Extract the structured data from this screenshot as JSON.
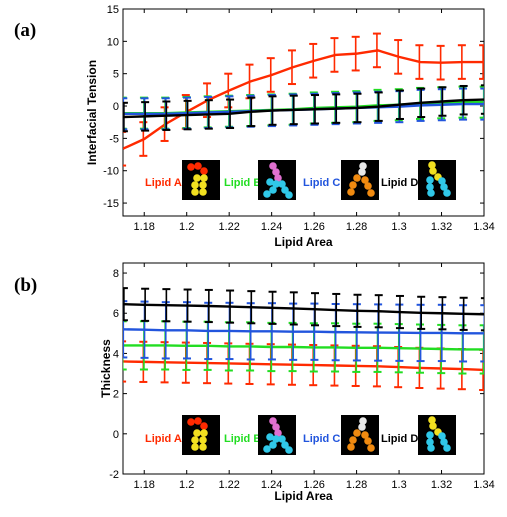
{
  "chart_data": [
    {
      "panel": "(a)",
      "type": "line",
      "xlabel": "Lipid Area",
      "ylabel": "Interfacial Tension",
      "xlim": [
        1.17,
        1.34
      ],
      "ylim": [
        -17,
        15
      ],
      "xticks": [
        1.18,
        1.2,
        1.22,
        1.24,
        1.26,
        1.28,
        1.3,
        1.32,
        1.34
      ],
      "xtick_labels": [
        "1.18",
        "1.2",
        "1.22",
        "1.24",
        "1.26",
        "1.28",
        "1.3",
        "1.32",
        "1.34"
      ],
      "yticks": [
        -15,
        -10,
        -5,
        0,
        5,
        10,
        15
      ],
      "ytick_labels": [
        "-15",
        "-10",
        "-5",
        "0",
        "5",
        "10",
        "15"
      ],
      "x": [
        1.17,
        1.18,
        1.19,
        1.2,
        1.21,
        1.22,
        1.23,
        1.24,
        1.25,
        1.26,
        1.27,
        1.28,
        1.29,
        1.3,
        1.31,
        1.32,
        1.33,
        1.34
      ],
      "series": [
        {
          "name": "Lipid A",
          "color": "#ff2a00",
          "values": [
            -6.6,
            -5.1,
            -2.8,
            -0.9,
            0.9,
            2.4,
            3.8,
            4.8,
            6.0,
            7.0,
            7.9,
            8.1,
            8.6,
            7.6,
            6.8,
            6.7,
            6.8,
            6.8
          ],
          "errors": [
            2.6,
            2.6,
            2.6,
            2.6,
            2.6,
            2.6,
            2.6,
            2.6,
            2.6,
            2.6,
            2.6,
            2.6,
            2.6,
            2.6,
            2.6,
            2.6,
            2.6,
            2.6
          ]
        },
        {
          "name": "Lipid B",
          "color": "#22dd22",
          "values": [
            -1.1,
            -1.1,
            -1.1,
            -1.0,
            -0.9,
            -0.8,
            -0.7,
            -0.6,
            -0.5,
            -0.3,
            -0.2,
            -0.1,
            0.1,
            0.2,
            0.4,
            0.5,
            0.6,
            0.6
          ],
          "errors": [
            2.4,
            2.4,
            2.4,
            2.4,
            2.4,
            2.4,
            2.4,
            2.4,
            2.4,
            2.4,
            2.4,
            2.4,
            2.4,
            2.4,
            2.4,
            2.4,
            2.4,
            2.4
          ]
        },
        {
          "name": "Lipid C",
          "color": "#2255dd",
          "values": [
            -1.2,
            -1.2,
            -1.2,
            -1.1,
            -1.0,
            -0.9,
            -0.8,
            -0.7,
            -0.6,
            -0.5,
            -0.4,
            -0.3,
            -0.2,
            -0.1,
            0.1,
            0.2,
            0.3,
            0.3
          ],
          "errors": [
            2.4,
            2.4,
            2.4,
            2.4,
            2.4,
            2.4,
            2.4,
            2.4,
            2.4,
            2.4,
            2.4,
            2.4,
            2.4,
            2.4,
            2.4,
            2.4,
            2.4,
            2.4
          ]
        },
        {
          "name": "Lipid D",
          "color": "#000000",
          "values": [
            -1.7,
            -1.6,
            -1.5,
            -1.4,
            -1.3,
            -1.2,
            -0.9,
            -0.7,
            -0.6,
            -0.5,
            -0.4,
            -0.3,
            -0.1,
            0.2,
            0.5,
            0.7,
            0.9,
            1.0
          ],
          "errors": [
            2.2,
            2.2,
            2.2,
            2.2,
            2.2,
            2.2,
            2.2,
            2.2,
            2.2,
            2.2,
            2.2,
            2.2,
            2.2,
            2.2,
            2.2,
            2.2,
            2.2,
            2.2
          ]
        }
      ],
      "legend_position": "bottom-center"
    },
    {
      "panel": "(b)",
      "type": "line",
      "xlabel": "Lipid Area",
      "ylabel": "Thickness",
      "xlim": [
        1.17,
        1.34
      ],
      "ylim": [
        -2,
        8.5
      ],
      "xticks": [
        1.18,
        1.2,
        1.22,
        1.24,
        1.26,
        1.28,
        1.3,
        1.32,
        1.34
      ],
      "xtick_labels": [
        "1.18",
        "1.2",
        "1.22",
        "1.24",
        "1.26",
        "1.28",
        "1.3",
        "1.32",
        "1.34"
      ],
      "yticks": [
        -2,
        0,
        2,
        4,
        6,
        8
      ],
      "ytick_labels": [
        "-2",
        "0",
        "2",
        "4",
        "6",
        "8"
      ],
      "x": [
        1.17,
        1.18,
        1.19,
        1.2,
        1.21,
        1.22,
        1.23,
        1.24,
        1.25,
        1.26,
        1.27,
        1.28,
        1.29,
        1.3,
        1.31,
        1.32,
        1.33,
        1.34
      ],
      "series": [
        {
          "name": "Lipid A",
          "color": "#ff2a00",
          "values": [
            3.6,
            3.58,
            3.56,
            3.54,
            3.52,
            3.5,
            3.48,
            3.46,
            3.44,
            3.42,
            3.4,
            3.38,
            3.36,
            3.32,
            3.28,
            3.25,
            3.22,
            3.18
          ],
          "errors": [
            1.0,
            1.0,
            1.0,
            1.0,
            1.0,
            1.0,
            1.0,
            1.0,
            1.0,
            1.0,
            1.0,
            1.0,
            1.0,
            1.0,
            1.0,
            1.0,
            1.0,
            1.0
          ]
        },
        {
          "name": "Lipid B",
          "color": "#22dd22",
          "values": [
            4.4,
            4.4,
            4.4,
            4.38,
            4.38,
            4.35,
            4.35,
            4.32,
            4.32,
            4.3,
            4.3,
            4.28,
            4.28,
            4.26,
            4.24,
            4.22,
            4.2,
            4.2
          ],
          "errors": [
            1.2,
            1.2,
            1.2,
            1.2,
            1.2,
            1.2,
            1.2,
            1.2,
            1.2,
            1.2,
            1.2,
            1.2,
            1.2,
            1.2,
            1.2,
            1.2,
            1.2,
            1.2
          ]
        },
        {
          "name": "Lipid C",
          "color": "#2255dd",
          "values": [
            5.2,
            5.18,
            5.15,
            5.15,
            5.12,
            5.12,
            5.1,
            5.1,
            5.08,
            5.08,
            5.06,
            5.05,
            5.04,
            5.03,
            5.02,
            5.02,
            5.0,
            5.0
          ],
          "errors": [
            1.4,
            1.4,
            1.4,
            1.4,
            1.4,
            1.4,
            1.4,
            1.4,
            1.4,
            1.4,
            1.4,
            1.4,
            1.4,
            1.4,
            1.4,
            1.4,
            1.4,
            1.4
          ]
        },
        {
          "name": "Lipid D",
          "color": "#000000",
          "values": [
            6.45,
            6.42,
            6.4,
            6.38,
            6.36,
            6.33,
            6.3,
            6.27,
            6.24,
            6.2,
            6.16,
            6.12,
            6.1,
            6.06,
            6.02,
            6.0,
            5.97,
            5.95
          ],
          "errors": [
            0.8,
            0.8,
            0.8,
            0.8,
            0.8,
            0.8,
            0.8,
            0.8,
            0.8,
            0.8,
            0.8,
            0.8,
            0.8,
            0.8,
            0.8,
            0.8,
            0.8,
            0.8
          ]
        }
      ],
      "legend_position": "bottom-center"
    }
  ],
  "lipid_icons": {
    "Lipid A": {
      "head": "#ff2a00",
      "tail": "#f2e020"
    },
    "Lipid B": {
      "head": "#e070d0",
      "tail": "#30c8e8"
    },
    "Lipid C": {
      "head": "#e8e8e8",
      "tail": "#f08a10"
    },
    "Lipid D": {
      "head": "#f2e020",
      "tail": "#30c8e8"
    }
  }
}
